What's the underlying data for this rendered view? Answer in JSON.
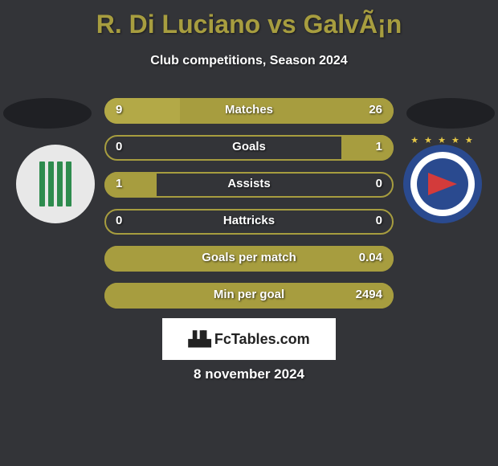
{
  "title": "R. Di Luciano vs GalvÃ¡n",
  "subtitle": "Club competitions, Season 2024",
  "date": "8 november 2024",
  "brand": "FcTables.com",
  "colors": {
    "background": "#333438",
    "title": "#a79d3f",
    "text": "#ffffff",
    "bar_track_border": "#a79d3f",
    "bar_fill_primary": "#a79d3f",
    "bar_fill_primary_light": "#beb355",
    "badge_left_bg": "#e8e8e8",
    "badge_left_stripe": "#2e8b4e",
    "badge_right_bg": "#2a4a8f",
    "badge_right_pennant": "#d33b3b"
  },
  "stats": [
    {
      "label": "Matches",
      "left_value": "9",
      "right_value": "26",
      "left_pct": 0.26,
      "right_pct": 0.74,
      "left_color": "#b3a947",
      "right_color": "#a79d3f",
      "track_border": "#a79d3f"
    },
    {
      "label": "Goals",
      "left_value": "0",
      "right_value": "1",
      "left_pct": 0.0,
      "right_pct": 0.18,
      "left_color": "#a79d3f",
      "right_color": "#a79d3f",
      "track_border": "#a79d3f"
    },
    {
      "label": "Assists",
      "left_value": "1",
      "right_value": "0",
      "left_pct": 0.18,
      "right_pct": 0.0,
      "left_color": "#a79d3f",
      "right_color": "#a79d3f",
      "track_border": "#a79d3f"
    },
    {
      "label": "Hattricks",
      "left_value": "0",
      "right_value": "0",
      "left_pct": 0.0,
      "right_pct": 0.0,
      "left_color": "#a79d3f",
      "right_color": "#a79d3f",
      "track_border": "#a79d3f"
    },
    {
      "label": "Goals per match",
      "left_value": "",
      "right_value": "0.04",
      "left_pct": 0.0,
      "right_pct": 1.0,
      "left_color": "#a79d3f",
      "right_color": "#a79d3f",
      "track_border": "#a79d3f",
      "single_right": true
    },
    {
      "label": "Min per goal",
      "left_value": "",
      "right_value": "2494",
      "left_pct": 0.0,
      "right_pct": 1.0,
      "left_color": "#a79d3f",
      "right_color": "#a79d3f",
      "track_border": "#a79d3f",
      "single_right": true
    }
  ]
}
